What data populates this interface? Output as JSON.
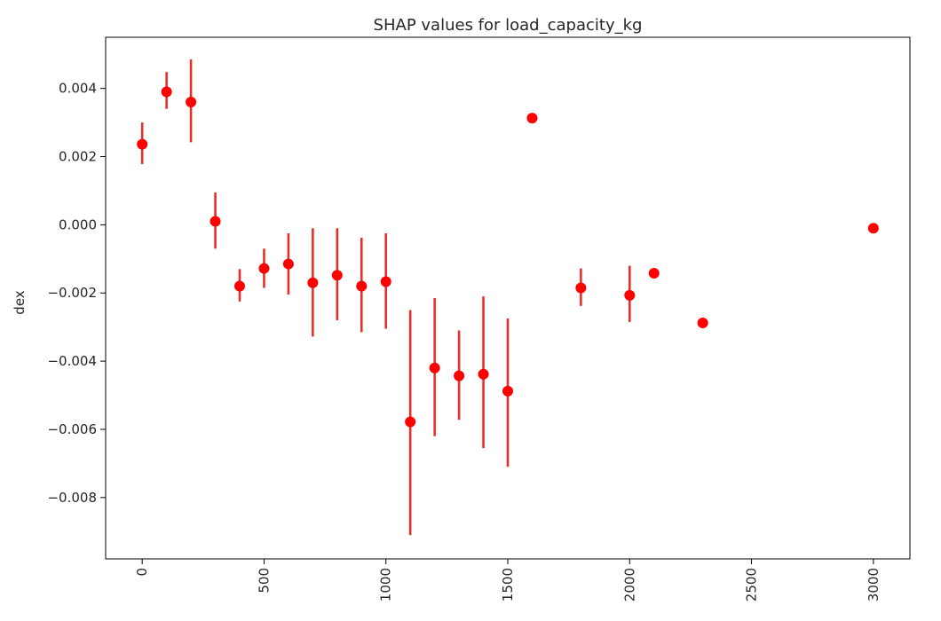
{
  "chart_data": {
    "type": "scatter",
    "title": "SHAP values for load_capacity_kg",
    "xlabel": "",
    "ylabel": "dex",
    "xlim": [
      -150,
      3150
    ],
    "ylim": [
      -0.0098,
      0.0055
    ],
    "x_ticks": [
      0,
      500,
      1000,
      1500,
      2000,
      2500,
      3000
    ],
    "x_tick_labels": [
      "0",
      "500",
      "1000",
      "1500",
      "2000",
      "2500",
      "3000"
    ],
    "y_ticks": [
      0.004,
      0.002,
      0.0,
      -0.002,
      -0.004,
      -0.006,
      -0.008
    ],
    "y_tick_labels": [
      "0.004",
      "0.002",
      "0.000",
      "−0.002",
      "−0.004",
      "−0.006",
      "−0.008"
    ],
    "x_tick_rotation": 90,
    "grid": false,
    "marker_color": "#ff0000",
    "errorbar_color": "#e8302b",
    "points": [
      {
        "x": 0,
        "y": 0.00236,
        "lo": 0.00178,
        "hi": 0.003
      },
      {
        "x": 100,
        "y": 0.0039,
        "lo": 0.0034,
        "hi": 0.00448
      },
      {
        "x": 200,
        "y": 0.0036,
        "lo": 0.00242,
        "hi": 0.00485
      },
      {
        "x": 300,
        "y": 0.0001,
        "lo": -0.0007,
        "hi": 0.00095
      },
      {
        "x": 400,
        "y": -0.0018,
        "lo": -0.00225,
        "hi": -0.0013
      },
      {
        "x": 500,
        "y": -0.00128,
        "lo": -0.00185,
        "hi": -0.0007
      },
      {
        "x": 600,
        "y": -0.00115,
        "lo": -0.00205,
        "hi": -0.00025
      },
      {
        "x": 700,
        "y": -0.0017,
        "lo": -0.00328,
        "hi": -0.0001
      },
      {
        "x": 800,
        "y": -0.00148,
        "lo": -0.0028,
        "hi": -0.0001
      },
      {
        "x": 900,
        "y": -0.0018,
        "lo": -0.00315,
        "hi": -0.00038
      },
      {
        "x": 1000,
        "y": -0.00167,
        "lo": -0.00305,
        "hi": -0.00025
      },
      {
        "x": 1100,
        "y": -0.00578,
        "lo": -0.0091,
        "hi": -0.0025
      },
      {
        "x": 1200,
        "y": -0.0042,
        "lo": -0.0062,
        "hi": -0.00215
      },
      {
        "x": 1300,
        "y": -0.00443,
        "lo": -0.00572,
        "hi": -0.0031
      },
      {
        "x": 1400,
        "y": -0.00438,
        "lo": -0.00655,
        "hi": -0.0021
      },
      {
        "x": 1500,
        "y": -0.00488,
        "lo": -0.0071,
        "hi": -0.00275
      },
      {
        "x": 1600,
        "y": 0.00313,
        "lo": null,
        "hi": null
      },
      {
        "x": 1800,
        "y": -0.00185,
        "lo": -0.00238,
        "hi": -0.00128
      },
      {
        "x": 2000,
        "y": -0.00207,
        "lo": -0.00285,
        "hi": -0.0012
      },
      {
        "x": 2100,
        "y": -0.00142,
        "lo": null,
        "hi": null
      },
      {
        "x": 2300,
        "y": -0.00288,
        "lo": null,
        "hi": null
      },
      {
        "x": 3000,
        "y": -0.0001,
        "lo": null,
        "hi": null
      }
    ]
  }
}
